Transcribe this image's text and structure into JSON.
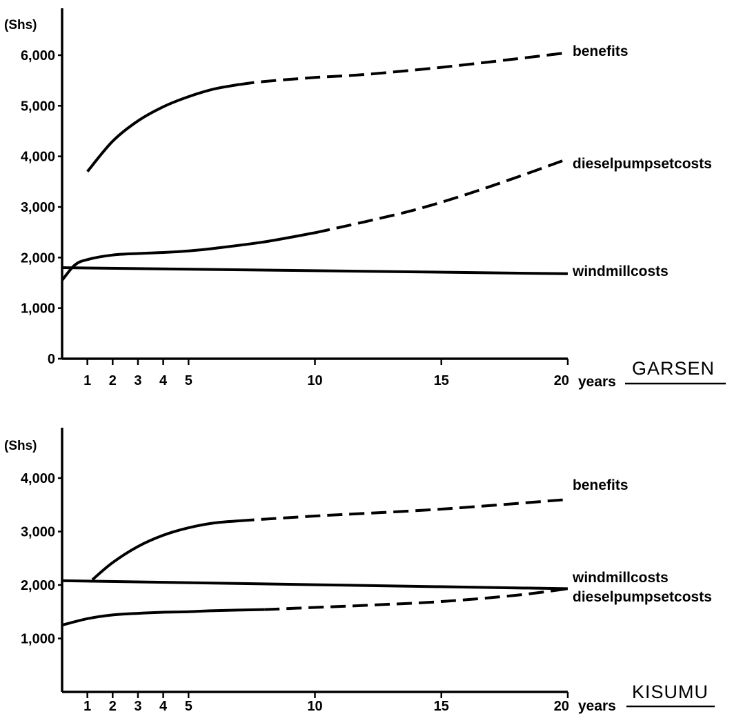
{
  "chart_data": [
    {
      "type": "line",
      "title": "GARSEN",
      "ylabel": "(Shs)",
      "xlabel": "years",
      "xlim": [
        0,
        20
      ],
      "ylim": [
        0,
        6000
      ],
      "xticks": [
        1,
        2,
        3,
        4,
        5,
        10,
        15,
        20
      ],
      "xtick_labels": [
        "1",
        "2",
        "3",
        "4",
        "5",
        "10",
        "15",
        "20"
      ],
      "yticks": [
        0,
        1000,
        2000,
        3000,
        4000,
        5000,
        6000
      ],
      "ytick_labels": [
        "0",
        "1,000",
        "2,000",
        "3,000",
        "4,000",
        "5,000",
        "6,000"
      ],
      "series": [
        {
          "name": "benefits",
          "x": [
            1,
            2,
            3,
            4,
            5,
            6,
            7,
            8,
            10,
            12,
            15,
            18,
            20
          ],
          "y": [
            3700,
            4300,
            4700,
            4980,
            5180,
            5330,
            5420,
            5480,
            5560,
            5620,
            5760,
            5930,
            6050
          ],
          "solid_until_x": 7
        },
        {
          "name": "dieselpumpsetcosts",
          "x": [
            0,
            0.5,
            1,
            2,
            3,
            4,
            5,
            6,
            8,
            10,
            12,
            14,
            16,
            18,
            20
          ],
          "y": [
            1550,
            1850,
            1960,
            2050,
            2080,
            2100,
            2130,
            2180,
            2310,
            2490,
            2710,
            2950,
            3250,
            3590,
            3950
          ],
          "solid_until_x": 10
        },
        {
          "name": "windmillcosts",
          "x": [
            0,
            20
          ],
          "y": [
            1800,
            1680
          ],
          "solid_until_x": 20
        }
      ]
    },
    {
      "type": "line",
      "title": "KISUMU",
      "ylabel": "(Shs)",
      "xlabel": "years",
      "xlim": [
        0,
        20
      ],
      "ylim": [
        0,
        4000
      ],
      "xticks": [
        1,
        2,
        3,
        4,
        5,
        10,
        15,
        20
      ],
      "xtick_labels": [
        "1",
        "2",
        "3",
        "4",
        "5",
        "10",
        "15",
        "20"
      ],
      "yticks": [
        1000,
        2000,
        3000,
        4000
      ],
      "ytick_labels": [
        "1,000",
        "2,000",
        "3,000",
        "4,000"
      ],
      "series": [
        {
          "name": "benefits",
          "x": [
            1.2,
            2,
            3,
            4,
            5,
            6,
            7,
            10,
            15,
            20
          ],
          "y": [
            2100,
            2420,
            2720,
            2930,
            3070,
            3160,
            3200,
            3290,
            3420,
            3600
          ],
          "solid_until_x": 7
        },
        {
          "name": "windmillcosts",
          "x": [
            0,
            20
          ],
          "y": [
            2080,
            1930
          ],
          "solid_until_x": 20
        },
        {
          "name": "dieselpumpsetcosts",
          "x": [
            0,
            1,
            2,
            3,
            4,
            5,
            6,
            8,
            10,
            12,
            15,
            18,
            20
          ],
          "y": [
            1250,
            1370,
            1440,
            1470,
            1490,
            1500,
            1520,
            1540,
            1580,
            1620,
            1690,
            1810,
            1930
          ],
          "solid_until_x": 8
        }
      ],
      "series_label_lines": [
        "windmillcosts",
        "dieselpumpsetcosts"
      ]
    }
  ]
}
